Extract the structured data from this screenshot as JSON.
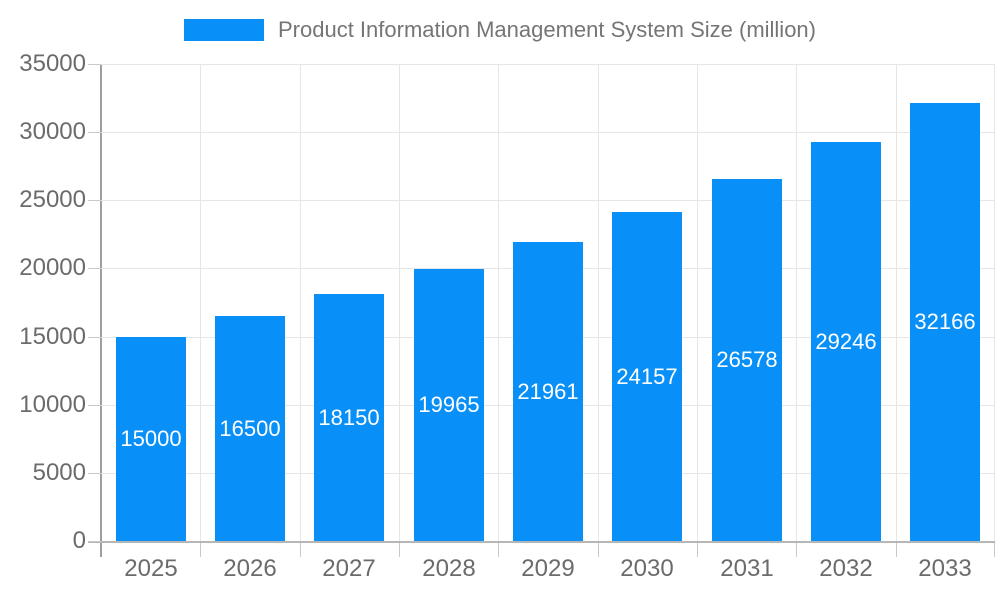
{
  "chart_data": {
    "type": "bar",
    "title": "Product Information Management System Size (million)",
    "categories": [
      "2025",
      "2026",
      "2027",
      "2028",
      "2029",
      "2030",
      "2031",
      "2032",
      "2033"
    ],
    "values": [
      15000,
      16500,
      18150,
      19965,
      21961,
      24157,
      26578,
      29246,
      32166
    ],
    "xlabel": "",
    "ylabel": "",
    "ylim": [
      0,
      35000
    ],
    "yticks": [
      0,
      5000,
      10000,
      15000,
      20000,
      25000,
      30000,
      35000
    ],
    "grid": true,
    "legend_position": "top",
    "colors": {
      "bar": "#0890f8",
      "value_label": "#ffffff",
      "grid": "#e6e6e6",
      "axis_line": "#9e9e9e",
      "baseline": "#b6b6b6",
      "tick": "#c9c9c9",
      "axis_text": "#6b6b6b",
      "title_text": "#757575"
    }
  }
}
